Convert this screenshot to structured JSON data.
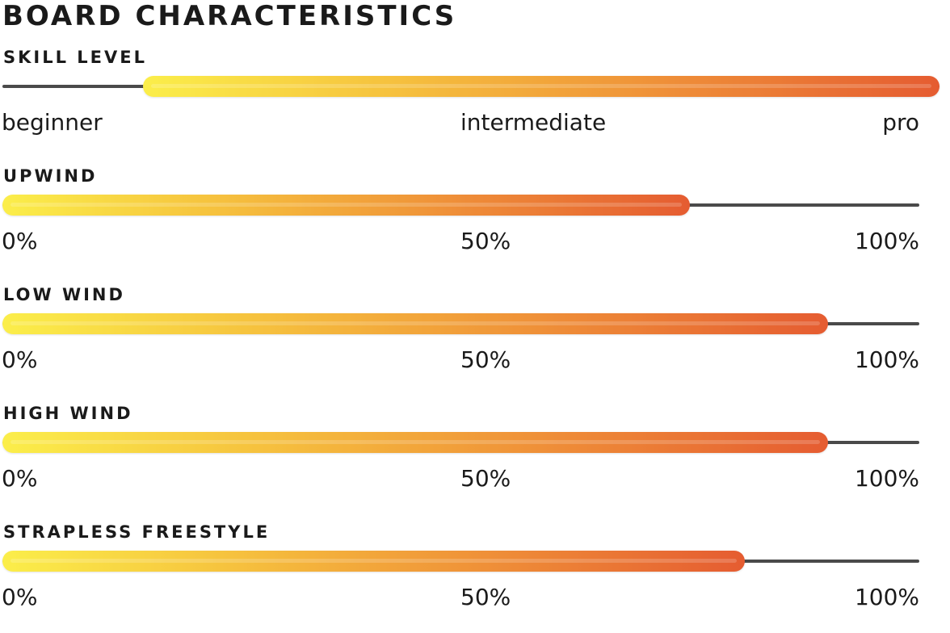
{
  "page": {
    "title": "BOARD CHARACTERISTICS"
  },
  "colors": {
    "gradient_start": "#fbee4a",
    "gradient_end": "#e55c31",
    "track": "#4a4a4a",
    "text": "#1a1a1a"
  },
  "ratings": [
    {
      "label": "SKILL LEVEL",
      "range_start": 0.15,
      "range_end": 1.0,
      "scale": {
        "left": "beginner",
        "middle": "intermediate",
        "right": "pro"
      }
    },
    {
      "label": "UPWIND",
      "range_start": 0.0,
      "range_end": 0.75,
      "scale": {
        "left": "0%",
        "middle": "50%",
        "right": "100%"
      }
    },
    {
      "label": "LOW WIND",
      "range_start": 0.0,
      "range_end": 0.9,
      "scale": {
        "left": "0%",
        "middle": "50%",
        "right": "100%"
      }
    },
    {
      "label": "HIGH WIND",
      "range_start": 0.0,
      "range_end": 0.9,
      "scale": {
        "left": "0%",
        "middle": "50%",
        "right": "100%"
      }
    },
    {
      "label": "STRAPLESS FREESTYLE",
      "range_start": 0.0,
      "range_end": 0.81,
      "scale": {
        "left": "0%",
        "middle": "50%",
        "right": "100%"
      }
    }
  ]
}
